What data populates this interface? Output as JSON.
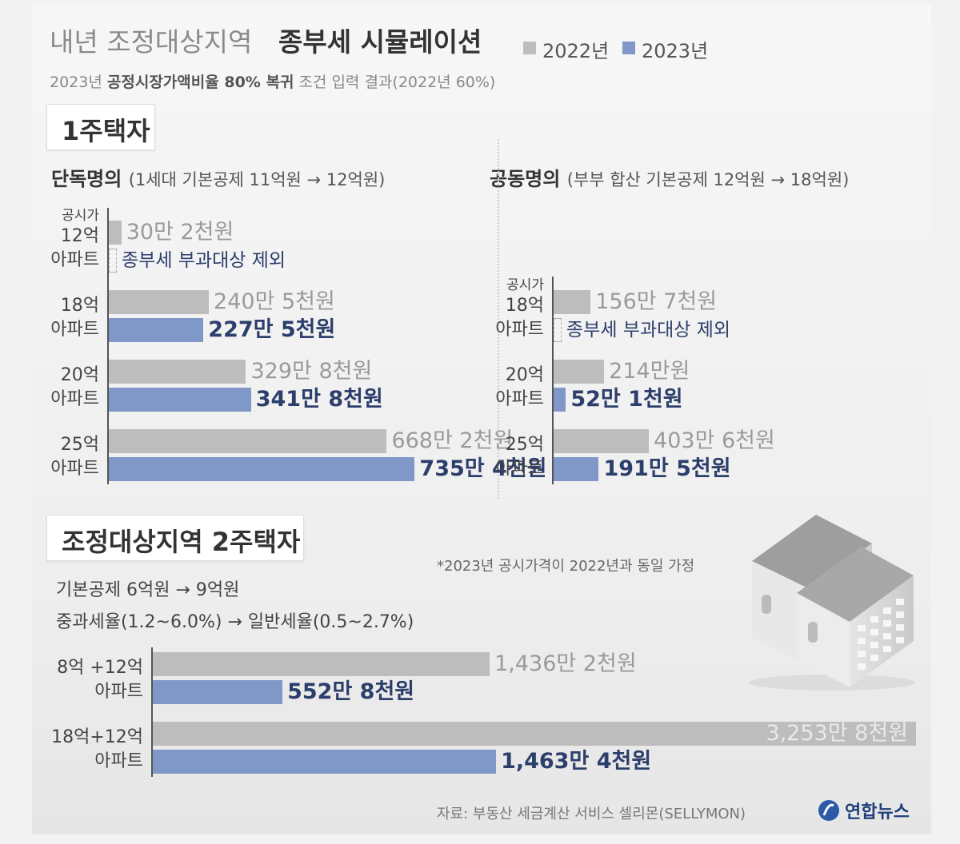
{
  "header": {
    "title_light": "내년 조정대상지역",
    "title_bold": "종부세 시뮬레이션",
    "subtitle_pre": "2023년",
    "subtitle_bold": "공정시장가액비율 80% 복귀",
    "subtitle_post": "조건 입력 결과(2022년 60%)"
  },
  "legend": [
    {
      "label": "2022년",
      "color": "#bdbdbd"
    },
    {
      "label": "2023년",
      "color": "#8098c8"
    }
  ],
  "sections": {
    "one_house": "1주택자",
    "two_house": "조정대상지역 2주택자"
  },
  "groups": {
    "single": {
      "title": "단독명의",
      "note": "(1세대 기본공제 11억원 → 12억원)"
    },
    "joint": {
      "title": "공동명의",
      "note": "(부부 합산 기본공제 12억원 → 18억원)"
    }
  },
  "two_house_notes": {
    "deduction": "기본공제 6억원 → 9억원",
    "rate": "중과세율(1.2~6.0%) → 일반세율(0.5~2.7%)"
  },
  "footnote": "*2023년 공시가격이 2022년과 동일 가정",
  "source": "자료: 부동산 세금계산 서비스 셀리몬(SELLYMON)",
  "logo": "연합뉴스",
  "icons": {
    "logo": "yonhap-logo-icon",
    "illustration": "apartment-buildings-icon"
  },
  "chart_data": [
    {
      "type": "bar",
      "orientation": "horizontal",
      "title": "단독명의",
      "unit": "만원",
      "categories": [
        {
          "label": "12억 아파트",
          "lines": [
            "공시가",
            "12억",
            "아파트"
          ]
        },
        {
          "label": "18억 아파트",
          "lines": [
            "18억",
            "아파트"
          ]
        },
        {
          "label": "20억 아파트",
          "lines": [
            "20억",
            "아파트"
          ]
        },
        {
          "label": "25억 아파트",
          "lines": [
            "25억",
            "아파트"
          ]
        }
      ],
      "series": [
        {
          "name": "2022년",
          "values": [
            30.2,
            240.5,
            329.8,
            668.2
          ],
          "labels": [
            "30만 2천원",
            "240만 5천원",
            "329만 8천원",
            "668만 2천원"
          ]
        },
        {
          "name": "2023년",
          "values": [
            0,
            227.5,
            341.8,
            735.4
          ],
          "labels": [
            "종부세 부과대상 제외",
            "227만 5천원",
            "341만 8천원",
            "735만 4천원"
          ]
        }
      ],
      "xlim": [
        0,
        1000
      ]
    },
    {
      "type": "bar",
      "orientation": "horizontal",
      "title": "공동명의",
      "unit": "만원",
      "categories": [
        {
          "label": "18억 아파트",
          "lines": [
            "공시가",
            "18억",
            "아파트"
          ]
        },
        {
          "label": "20억 아파트",
          "lines": [
            "20억",
            "아파트"
          ]
        },
        {
          "label": "25억 아파트",
          "lines": [
            "25억",
            "아파트"
          ]
        }
      ],
      "series": [
        {
          "name": "2022년",
          "values": [
            156.7,
            214,
            403.6
          ],
          "labels": [
            "156만 7천원",
            "214만원",
            "403만 6천원"
          ]
        },
        {
          "name": "2023년",
          "values": [
            0,
            52.1,
            191.5
          ],
          "labels": [
            "종부세 부과대상 제외",
            "52만 1천원",
            "191만 5천원"
          ]
        }
      ],
      "xlim": [
        0,
        1000
      ]
    },
    {
      "type": "bar",
      "orientation": "horizontal",
      "title": "조정대상지역 2주택자",
      "unit": "만원",
      "categories": [
        {
          "label": "8억+12억 아파트",
          "lines": [
            "8억 +12억",
            "아파트"
          ]
        },
        {
          "label": "18억+12억 아파트",
          "lines": [
            "18억+12억",
            "아파트"
          ]
        }
      ],
      "series": [
        {
          "name": "2022년",
          "values": [
            1436.2,
            3253.8
          ],
          "labels": [
            "1,436만 2천원",
            "3,253만 8천원"
          ]
        },
        {
          "name": "2023년",
          "values": [
            552.8,
            1463.4
          ],
          "labels": [
            "552만 8천원",
            "1,463만 4천원"
          ]
        }
      ],
      "xlim": [
        0,
        3253.8
      ]
    }
  ]
}
